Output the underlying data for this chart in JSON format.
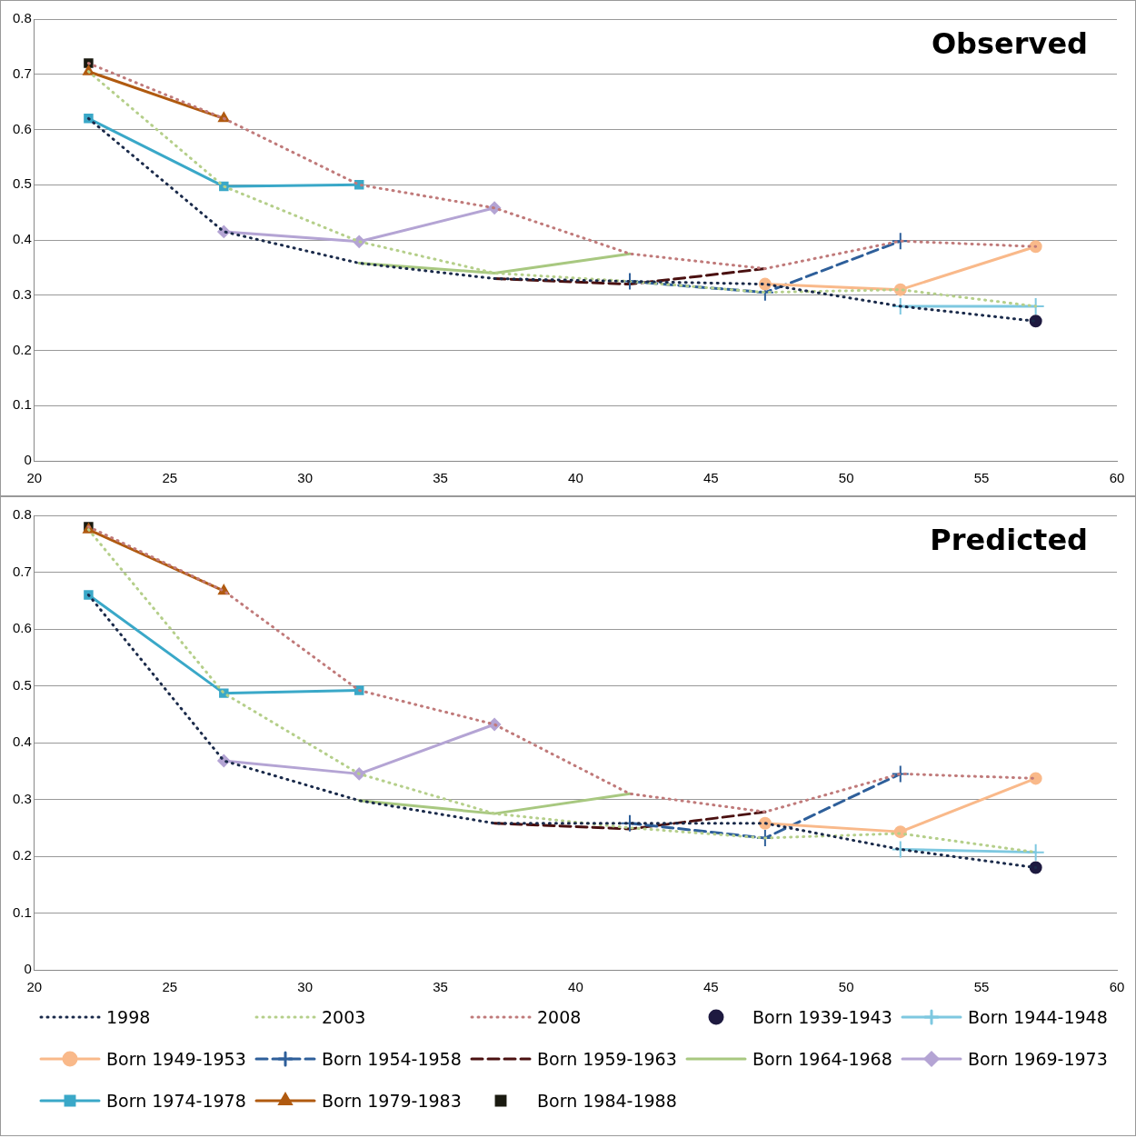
{
  "chart_data": [
    {
      "type": "line",
      "title": "Observed",
      "xlim": [
        20,
        60
      ],
      "xticks": [
        20,
        25,
        30,
        35,
        40,
        45,
        50,
        55,
        60
      ],
      "ylim": [
        0,
        0.8
      ],
      "yticks": [
        {
          "value": 0,
          "label": "0"
        },
        0.1,
        0.2,
        0.3,
        0.4,
        0.5,
        0.6,
        0.7,
        0.8
      ],
      "grid": "y",
      "legend": false,
      "series": [
        {
          "color": "#1a2a4a",
          "line_style": "dotted",
          "marker": "none",
          "x": [
            22,
            27,
            32,
            37,
            42,
            47,
            52,
            57
          ],
          "values": [
            0.62,
            0.415,
            0.358,
            0.33,
            0.325,
            0.32,
            0.28,
            0.253
          ]
        },
        {
          "color": "#b5cf8a",
          "line_style": "dotted",
          "marker": "none",
          "x": [
            22,
            27,
            32,
            37,
            42,
            47,
            52,
            57
          ],
          "values": [
            0.705,
            0.497,
            0.397,
            0.34,
            0.325,
            0.305,
            0.31,
            0.28
          ]
        },
        {
          "color": "#c07a7a",
          "line_style": "dotted",
          "marker": "none",
          "x": [
            22,
            27,
            32,
            37,
            42,
            47,
            52,
            57
          ],
          "values": [
            0.72,
            0.62,
            0.5,
            0.458,
            0.375,
            0.348,
            0.398,
            0.388
          ]
        },
        {
          "color": "#1e1a40",
          "marker": "circle",
          "x": [
            57
          ],
          "values": [
            0.253
          ]
        },
        {
          "color": "#7ec8e0",
          "line_style": "solid",
          "marker": "cross",
          "x": [
            52,
            57
          ],
          "values": [
            0.28,
            0.28
          ]
        },
        {
          "color": "#f9b98a",
          "line_style": "solid",
          "marker": "circle",
          "x": [
            47,
            52,
            57
          ],
          "values": [
            0.32,
            0.31,
            0.388
          ]
        },
        {
          "color": "#2e5f9a",
          "line_style": "dashed",
          "marker": "cross",
          "x": [
            42,
            47,
            52
          ],
          "values": [
            0.325,
            0.305,
            0.398
          ]
        },
        {
          "color": "#4a1010",
          "line_style": "dashed",
          "marker": "none",
          "x": [
            37,
            42,
            47
          ],
          "values": [
            0.33,
            0.32,
            0.348
          ]
        },
        {
          "color": "#a8c880",
          "line_style": "solid",
          "marker": "none",
          "x": [
            32,
            37,
            42
          ],
          "values": [
            0.358,
            0.34,
            0.375
          ]
        },
        {
          "color": "#b4a4d4",
          "line_style": "solid",
          "marker": "diamond",
          "x": [
            27,
            32,
            37
          ],
          "values": [
            0.415,
            0.397,
            0.458
          ]
        },
        {
          "color": "#3aa8c8",
          "line_style": "solid",
          "marker": "square",
          "x": [
            22,
            27,
            32
          ],
          "values": [
            0.62,
            0.497,
            0.5
          ]
        },
        {
          "color": "#b05a10",
          "line_style": "solid",
          "marker": "triangle",
          "x": [
            22,
            27
          ],
          "values": [
            0.705,
            0.62
          ]
        },
        {
          "color": "#1a1a10",
          "marker": "square",
          "x": [
            22
          ],
          "values": [
            0.72
          ]
        }
      ]
    },
    {
      "type": "line",
      "title": "Predicted",
      "xlim": [
        20,
        60
      ],
      "xticks": [
        20,
        25,
        30,
        35,
        40,
        45,
        50,
        55,
        60
      ],
      "ylim": [
        0,
        0.8
      ],
      "yticks": [
        {
          "value": 0,
          "label": "0"
        },
        0.1,
        0.2,
        0.3,
        0.4,
        0.5,
        0.6,
        0.7,
        0.8
      ],
      "grid": "y",
      "legend": "bottom",
      "series": [
        {
          "name": "1998",
          "color": "#1a2a4a",
          "line_style": "dotted",
          "marker": "none",
          "x": [
            22,
            27,
            32,
            37,
            42,
            47,
            52,
            57
          ],
          "values": [
            0.66,
            0.368,
            0.298,
            0.258,
            0.258,
            0.258,
            0.212,
            0.18
          ]
        },
        {
          "name": "2003",
          "color": "#b5cf8a",
          "line_style": "dotted",
          "marker": "none",
          "x": [
            22,
            27,
            32,
            37,
            42,
            47,
            52,
            57
          ],
          "values": [
            0.775,
            0.487,
            0.345,
            0.275,
            0.25,
            0.232,
            0.24,
            0.207
          ]
        },
        {
          "name": "2008",
          "color": "#c07a7a",
          "line_style": "dotted",
          "marker": "none",
          "x": [
            22,
            27,
            32,
            37,
            42,
            47,
            52,
            57
          ],
          "values": [
            0.78,
            0.667,
            0.492,
            0.432,
            0.31,
            0.278,
            0.345,
            0.337
          ]
        },
        {
          "name": "Born 1939-1943",
          "color": "#1e1a40",
          "marker": "circle",
          "x": [
            57
          ],
          "values": [
            0.18
          ]
        },
        {
          "name": "Born 1944-1948",
          "color": "#7ec8e0",
          "line_style": "solid",
          "marker": "cross",
          "x": [
            52,
            57
          ],
          "values": [
            0.212,
            0.207
          ]
        },
        {
          "name": "Born 1949-1953",
          "color": "#f9b98a",
          "line_style": "solid",
          "marker": "circle",
          "x": [
            47,
            52,
            57
          ],
          "values": [
            0.258,
            0.243,
            0.337
          ]
        },
        {
          "name": "Born 1954-1958",
          "color": "#2e5f9a",
          "line_style": "dashed",
          "marker": "cross",
          "x": [
            42,
            47,
            52
          ],
          "values": [
            0.258,
            0.232,
            0.345
          ]
        },
        {
          "name": "Born 1959-1963",
          "color": "#4a1010",
          "line_style": "dashed",
          "marker": "none",
          "x": [
            37,
            42,
            47
          ],
          "values": [
            0.258,
            0.248,
            0.278
          ]
        },
        {
          "name": "Born 1964-1968",
          "color": "#a8c880",
          "line_style": "solid",
          "marker": "none",
          "x": [
            32,
            37,
            42
          ],
          "values": [
            0.298,
            0.275,
            0.31
          ]
        },
        {
          "name": "Born 1969-1973",
          "color": "#b4a4d4",
          "line_style": "solid",
          "marker": "diamond",
          "x": [
            27,
            32,
            37
          ],
          "values": [
            0.368,
            0.345,
            0.432
          ]
        },
        {
          "name": "Born 1974-1978",
          "color": "#3aa8c8",
          "line_style": "solid",
          "marker": "square",
          "x": [
            22,
            27,
            32
          ],
          "values": [
            0.66,
            0.487,
            0.492
          ]
        },
        {
          "name": "Born 1979-1983",
          "color": "#b05a10",
          "line_style": "solid",
          "marker": "triangle",
          "x": [
            22,
            27
          ],
          "values": [
            0.775,
            0.667
          ]
        },
        {
          "name": "Born 1984-1988",
          "color": "#1a1a10",
          "marker": "square",
          "x": [
            22
          ],
          "values": [
            0.78
          ]
        }
      ]
    }
  ]
}
